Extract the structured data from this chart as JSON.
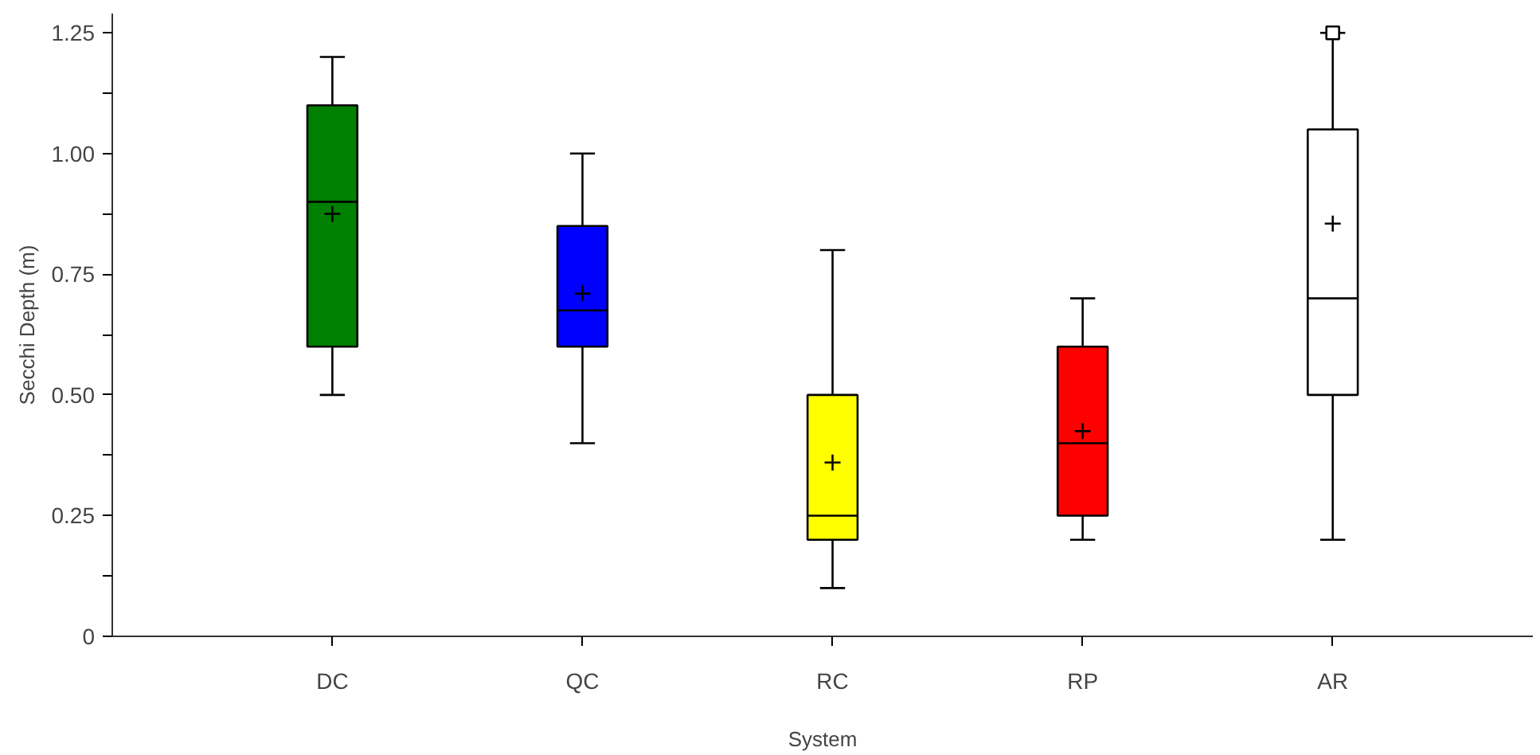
{
  "chart_data": {
    "type": "box",
    "xlabel": "System",
    "ylabel": "Secchi Depth (m)",
    "categories": [
      "DC",
      "QC",
      "RC",
      "RP",
      "AR"
    ],
    "colors": [
      "#008000",
      "#0000ff",
      "#ffff00",
      "#ff0000",
      "#ffffff"
    ],
    "boxes": [
      {
        "low": 0.5,
        "q1": 0.6,
        "median": 0.9,
        "q3": 1.1,
        "high": 1.2,
        "mean": 0.875
      },
      {
        "low": 0.4,
        "q1": 0.6,
        "median": 0.675,
        "q3": 0.85,
        "high": 1.0,
        "mean": 0.71
      },
      {
        "low": 0.1,
        "q1": 0.2,
        "median": 0.25,
        "q3": 0.5,
        "high": 0.8,
        "mean": 0.36
      },
      {
        "low": 0.2,
        "q1": 0.25,
        "median": 0.4,
        "q3": 0.6,
        "high": 0.7,
        "mean": 0.425
      },
      {
        "low": 0.2,
        "q1": 0.5,
        "median": 0.7,
        "q3": 1.05,
        "high": 1.25,
        "mean": 0.855,
        "outliers": [
          1.25
        ]
      }
    ],
    "ylim": [
      0,
      1.29
    ],
    "yticks": [
      0,
      {
        "value": 0.125,
        "label": null
      },
      {
        "value": 0.25,
        "label": "0.25"
      },
      {
        "value": 0.375,
        "label": null
      },
      {
        "value": 0.5,
        "label": "0.50"
      },
      {
        "value": 0.625,
        "label": null
      },
      {
        "value": 0.75,
        "label": "0.75"
      },
      {
        "value": 0.875,
        "label": null
      },
      {
        "value": 1.0,
        "label": "1.00"
      },
      {
        "value": 1.125,
        "label": null
      },
      {
        "value": 1.25,
        "label": "1.25"
      }
    ],
    "grid": false
  }
}
